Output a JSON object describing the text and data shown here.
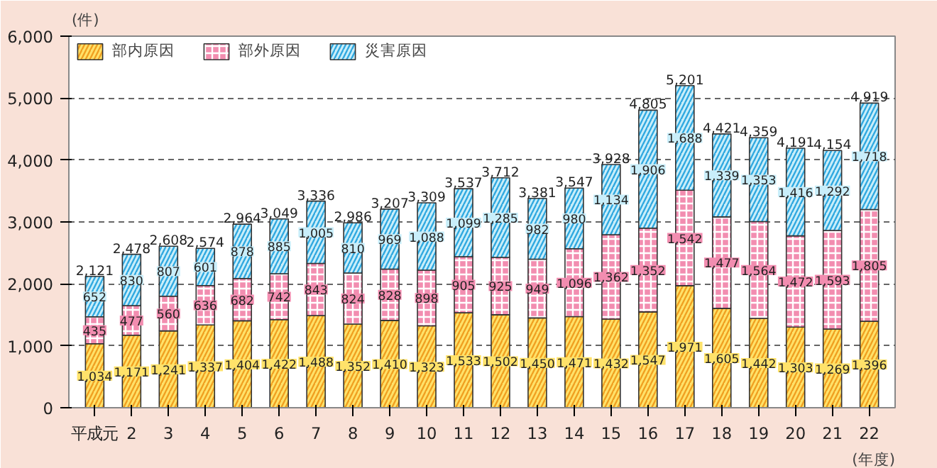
{
  "chart_data": {
    "type": "bar",
    "stacked": true,
    "ylabel": "(件)",
    "xlabel": "(年度)",
    "categories": [
      "平成元",
      "2",
      "3",
      "4",
      "5",
      "6",
      "7",
      "8",
      "9",
      "10",
      "11",
      "12",
      "13",
      "14",
      "15",
      "16",
      "17",
      "18",
      "19",
      "20",
      "21",
      "22"
    ],
    "series": [
      {
        "name": "部内原因",
        "color": "#ffe26a",
        "values": [
          1034,
          1171,
          1241,
          1337,
          1404,
          1422,
          1488,
          1352,
          1410,
          1323,
          1533,
          1502,
          1450,
          1471,
          1432,
          1547,
          1971,
          1605,
          1442,
          1303,
          1269,
          1396
        ],
        "value_labels": [
          "1,034",
          "1,171",
          "1,241",
          "1,337",
          "1,404",
          "1,422",
          "1,488",
          "1,352",
          "1,410",
          "1,323",
          "1,533",
          "1,502",
          "1,450",
          "1,471",
          "1,432",
          "1,547",
          "1,971",
          "1,605",
          "1,442",
          "1,303",
          "1,269",
          "1,396"
        ]
      },
      {
        "name": "部外原因",
        "color": "#f28db0",
        "values": [
          435,
          477,
          560,
          636,
          682,
          742,
          843,
          824,
          828,
          898,
          905,
          925,
          949,
          1096,
          1362,
          1352,
          1542,
          1477,
          1564,
          1472,
          1593,
          1805
        ],
        "value_labels": [
          "435",
          "477",
          "560",
          "636",
          "682",
          "742",
          "843",
          "824",
          "828",
          "898",
          "905",
          "925",
          "949",
          "1,096",
          "1,362",
          "1,352",
          "1,542",
          "1,477",
          "1,564",
          "1,472",
          "1,593",
          "1,805"
        ]
      },
      {
        "name": "災害原因",
        "color": "#c9eefa",
        "values": [
          652,
          830,
          807,
          601,
          878,
          885,
          1005,
          810,
          969,
          1088,
          1099,
          1285,
          982,
          980,
          1134,
          1906,
          1688,
          1339,
          1353,
          1416,
          1292,
          1718
        ],
        "value_labels": [
          "652",
          "830",
          "807",
          "601",
          "878",
          "885",
          "1,005",
          "810",
          "969",
          "1,088",
          "1,099",
          "1,285",
          "982",
          "980",
          "1,134",
          "1,906",
          "1,688",
          "1,339",
          "1,353",
          "1,416",
          "1,292",
          "1,718"
        ]
      }
    ],
    "totals": [
      "2,121",
      "2,478",
      "2,608",
      "2,574",
      "2,964",
      "3,049",
      "3,336",
      "2,986",
      "3,207",
      "3,309",
      "3,537",
      "3,712",
      "3,381",
      "3,547",
      "3,928",
      "4,805",
      "5,201",
      "4,421",
      "4,359",
      "4,191",
      "4,154",
      "4,919"
    ],
    "ylim": [
      0,
      6000
    ],
    "yticks": [
      0,
      {
        "value": 1000,
        "label": "1,000"
      },
      {
        "value": 2000,
        "label": "2,000"
      },
      {
        "value": 3000,
        "label": "3,000"
      },
      {
        "value": 4000,
        "label": "4,000"
      },
      {
        "value": 5000,
        "label": "5,000"
      },
      {
        "value": 6000,
        "label": "6,000"
      }
    ],
    "grid": "y",
    "legend": "top left"
  }
}
